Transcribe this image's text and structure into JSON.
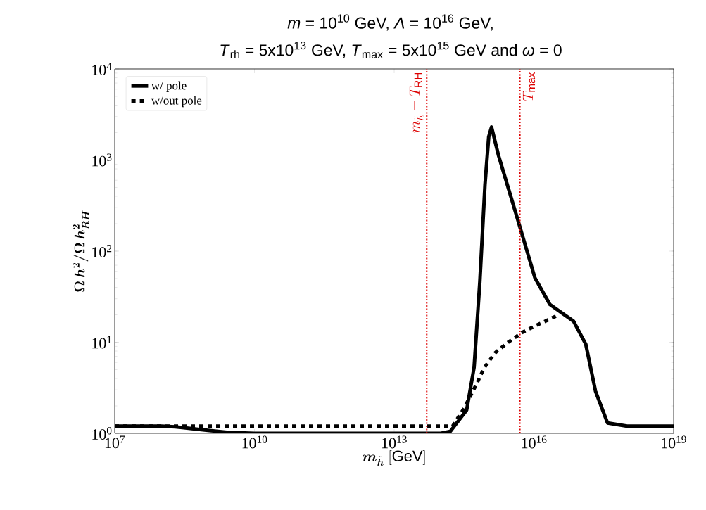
{
  "chart_data": {
    "type": "line",
    "title": "*m* = 10$^{10}$ GeV, *Λ* = 10$^{16}$ GeV,",
    "subtitle": "*T*$_{rh}$ = 5x10$^{13}$ GeV, *T*$_{max}$ = 5x10$^{15}$ GeV and *ω* = 0",
    "xlabel": "\\boldsymbol{m_{\\tilde{h}}}\\;[\\mathrm{GeV}]",
    "ylabel": "\\boldsymbol{\\Omega\\, h^2/\\Omega\\, h^2_{RH}}",
    "log": "xy",
    "xlim": [
      10000000.0,
      1e+19
    ],
    "ylim": [
      1,
      10000
    ],
    "xticks": [
      {
        "value": 10000000.0,
        "label": "10$^{7}$"
      },
      {
        "value": 10000000000.0,
        "label": "10$^{10}$"
      },
      {
        "value": 10000000000000.0,
        "label": "10$^{13}$"
      },
      {
        "value": 1e+16,
        "label": "10$^{16}$"
      },
      {
        "value": 1e+19,
        "label": "10$^{19}$"
      }
    ],
    "yticks": [
      {
        "value": 1,
        "label": "10$^{0}$"
      },
      {
        "value": 10,
        "label": "10$^{1}$"
      },
      {
        "value": 100,
        "label": "10$^{2}$"
      },
      {
        "value": 1000,
        "label": "10$^{3}$"
      },
      {
        "value": 10000,
        "label": "10$^{4}$"
      }
    ],
    "legend": "top left",
    "series": [
      {
        "name": "w/ pole",
        "color": "#000000",
        "line_style": "solid",
        "x": [
          10000000.0,
          100000000.0,
          200000000.0,
          1000000000.0,
          3000000000.0,
          10000000000.0,
          10000000000000.0,
          100000000000000.0,
          160000000000000.0,
          360000000000000.0,
          520000000000000.0,
          690000000000000.0,
          890000000000000.0,
          1070000000000000.0,
          1230000000000000.0,
          1740000000000000.0,
          4600000000000000.0,
          1.05e+16,
          2.2e+16,
          7.1e+16,
          1.3e+17,
          2.1e+17,
          3.8e+17,
          1e+18,
          1e+19
        ],
        "values": [
          1.2,
          1.2,
          1.18,
          1.08,
          1.02,
          1.0,
          1.0,
          1.0,
          1.05,
          1.8,
          5.3,
          46,
          535,
          1800,
          2300,
          1120,
          213,
          51,
          26,
          17,
          9.5,
          2.9,
          1.3,
          1.2,
          1.2
        ]
      },
      {
        "name": "w/out pole",
        "color": "#000000",
        "line_style": "dotted",
        "x": [
          10000000.0,
          100000000000000.0,
          180000000000000.0,
          320000000000000.0,
          590000000000000.0,
          850000000000000.0,
          1450000000000000.0,
          2800000000000000.0,
          5900000000000000.0,
          1.35e+16,
          3.1e+16
        ],
        "values": [
          1.2,
          1.2,
          1.2,
          1.9,
          3.5,
          5.2,
          7.6,
          10,
          13,
          16,
          19.5
        ]
      }
    ],
    "ref_lines": [
      {
        "axis": "x",
        "value": 50000000000000.0,
        "label": "m_{\\tilde{h}} = T_{\\rm RH}",
        "color": "#dd0000",
        "line_style": "dotted"
      },
      {
        "axis": "x",
        "value": 5000000000000000.0,
        "label": "T_{\\rm max}",
        "color": "#dd0000",
        "line_style": "dotted"
      }
    ]
  }
}
